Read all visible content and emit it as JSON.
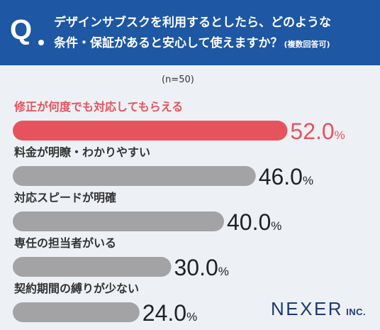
{
  "header": {
    "q_letter": "Q",
    "question_line1": "デザインサブスクを利用するとしたら、どのような",
    "question_line2": "条件・保証があると安心して使えますか？",
    "question_note": "(複数回答可)"
  },
  "sample_note": "(n=50)",
  "logo": {
    "main": "NEXER",
    "sub": "INC."
  },
  "colors": {
    "header_bg": "#1e57a3",
    "highlight": "#e6535d",
    "bar": "#a3a3a6",
    "background": "#edf1f6"
  },
  "chart_data": {
    "type": "bar",
    "orientation": "horizontal",
    "categories": [
      "修正が何度でも対応してもらえる",
      "料金が明瞭・わかりやすい",
      "対応スピードが明確",
      "専任の担当者がいる",
      "契約期間の縛りが少ない"
    ],
    "values": [
      52.0,
      46.0,
      40.0,
      30.0,
      24.0
    ],
    "value_labels": [
      "52.0",
      "46.0",
      "40.0",
      "30.0",
      "24.0"
    ],
    "unit": "%",
    "highlight_index": 0,
    "xlim": [
      0,
      100
    ],
    "grid": false,
    "legend": "none"
  }
}
